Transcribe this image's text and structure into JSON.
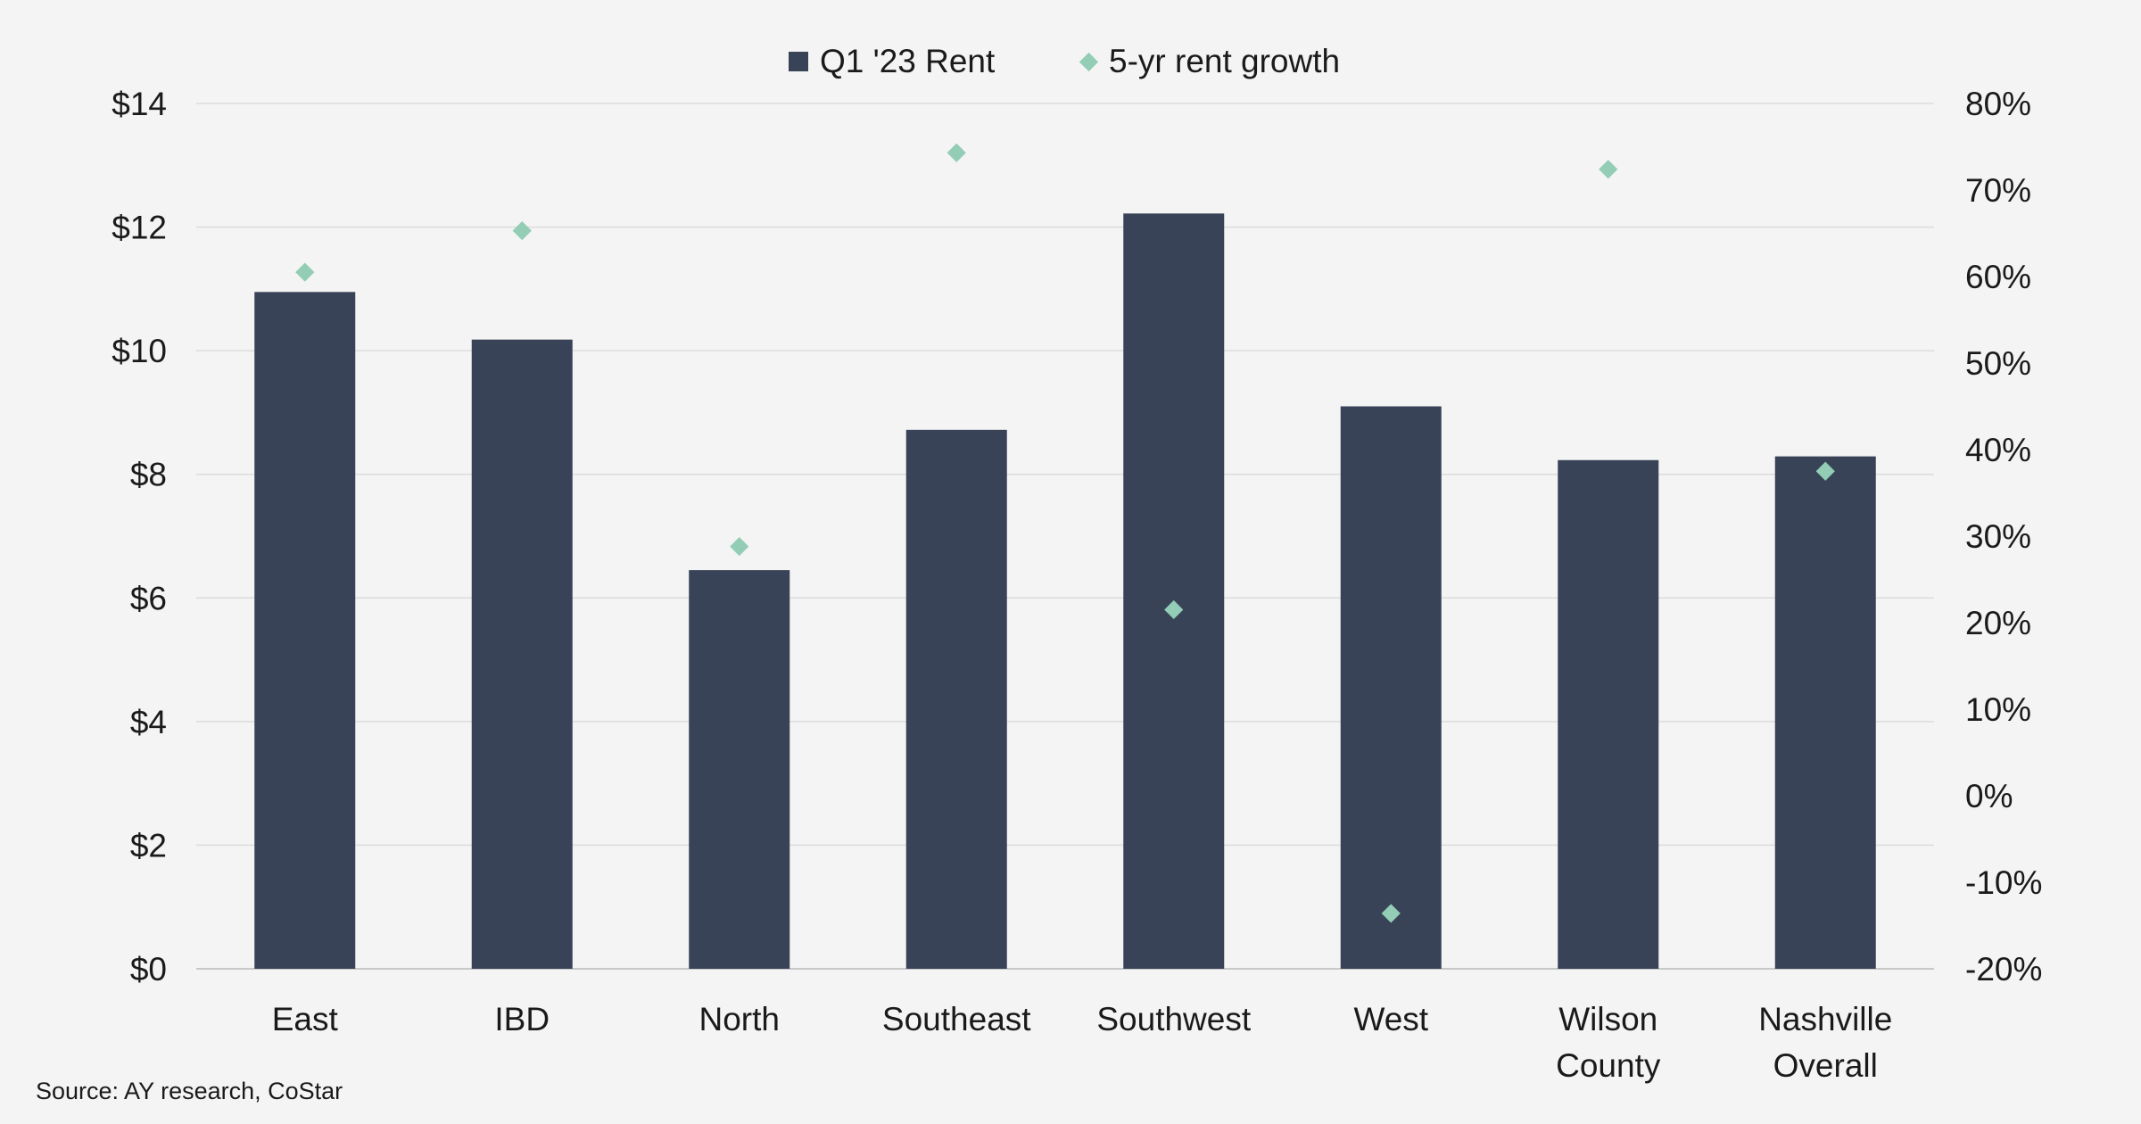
{
  "chart_data": {
    "type": "bar",
    "title": "",
    "categories": [
      "East",
      "IBD",
      "North",
      "Southeast",
      "Southwest",
      "West",
      "Wilson County",
      "Nashville Overall"
    ],
    "series": [
      {
        "name": "Q1 '23 Rent",
        "type": "bar",
        "axis": "left",
        "color": "#384357",
        "values": [
          10.95,
          10.18,
          6.45,
          8.72,
          12.22,
          9.1,
          8.23,
          8.29
        ]
      },
      {
        "name": "5-yr rent growth",
        "type": "scatter",
        "axis": "right",
        "marker": "diamond",
        "color": "#93cdb6",
        "values": [
          60.5,
          65.3,
          28.8,
          74.3,
          21.5,
          -13.6,
          72.4,
          37.5
        ]
      }
    ],
    "y_left": {
      "min": 0,
      "max": 14,
      "step": 2,
      "tick_labels": [
        "$0",
        "$2",
        "$4",
        "$6",
        "$8",
        "$10",
        "$12",
        "$14"
      ]
    },
    "y_right": {
      "min": -20,
      "max": 80,
      "step": 10,
      "tick_labels": [
        "-20%",
        "-10%",
        "0%",
        "10%",
        "20%",
        "30%",
        "40%",
        "50%",
        "60%",
        "70%",
        "80%"
      ]
    },
    "grid": true,
    "legend_position": "top-center",
    "xlabel": "",
    "ylabel": "",
    "source": "Source: AY research, CoStar"
  }
}
